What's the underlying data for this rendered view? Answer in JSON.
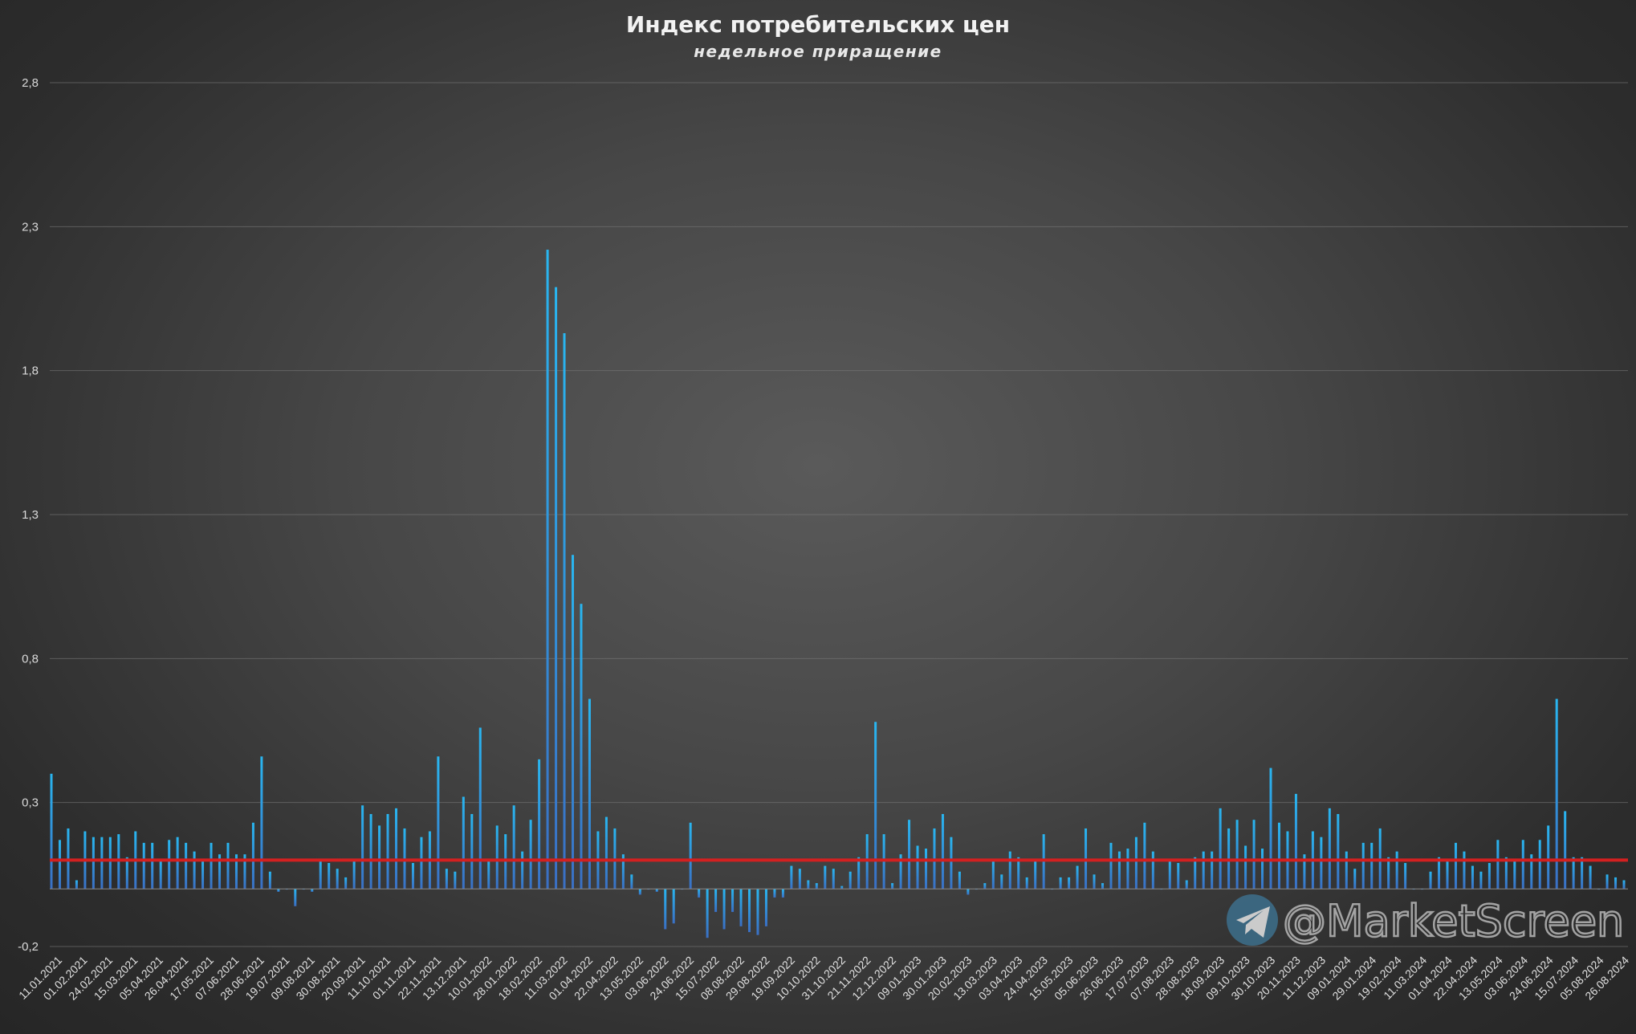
{
  "chart_data": {
    "type": "bar",
    "title": "Индекс потребительских цен",
    "subtitle": "недельное приращение",
    "xlabel": "",
    "ylabel": "",
    "ylim": [
      -0.2,
      2.8
    ],
    "yticks": [
      "-0,2",
      "0,3",
      "0,8",
      "1,3",
      "1,8",
      "2,3",
      "2,8"
    ],
    "ytick_values": [
      -0.2,
      0.3,
      0.8,
      1.3,
      1.8,
      2.3,
      2.8
    ],
    "grid": true,
    "bar_color": "#1f9bd8",
    "reference_line": {
      "value": 0.1,
      "color": "#d42020"
    },
    "xtick_labels": [
      "11.01.2021",
      "01.02.2021",
      "24.02.2021",
      "15.03.2021",
      "05.04.2021",
      "26.04.2021",
      "17.05.2021",
      "07.06.2021",
      "28.06.2021",
      "19.07.2021",
      "09.08.2021",
      "30.08.2021",
      "20.09.2021",
      "11.10.2021",
      "01.11.2021",
      "22.11.2021",
      "13.12.2021",
      "10.01.2022",
      "28.01.2022",
      "18.02.2022",
      "11.03.2022",
      "01.04.2022",
      "22.04.2022",
      "13.05.2022",
      "03.06.2022",
      "24.06.2022",
      "15.07.2022",
      "08.08.2022",
      "29.08.2022",
      "19.09.2022",
      "10.10.2022",
      "31.10.2022",
      "21.11.2022",
      "12.12.2022",
      "09.01.2023",
      "30.01.2023",
      "20.02.2023",
      "13.03.2023",
      "03.04.2023",
      "24.04.2023",
      "15.05.2023",
      "05.06.2023",
      "26.06.2023",
      "17.07.2023",
      "07.08.2023",
      "28.08.2023",
      "18.09.2023",
      "09.10.2023",
      "30.10.2023",
      "20.11.2023",
      "11.12.2023",
      "09.01.2024",
      "29.01.2024",
      "19.02.2024",
      "11.03.2024",
      "01.04.2024",
      "22.04.2024",
      "13.05.2024",
      "03.06.2024",
      "24.06.2024",
      "15.07.2024",
      "05.08.2024",
      "26.08.2024"
    ],
    "values": [
      0.4,
      0.17,
      0.21,
      0.03,
      0.2,
      0.18,
      0.18,
      0.18,
      0.19,
      0.11,
      0.2,
      0.16,
      0.16,
      0.1,
      0.17,
      0.18,
      0.16,
      0.13,
      0.1,
      0.16,
      0.12,
      0.16,
      0.12,
      0.12,
      0.23,
      0.46,
      0.06,
      -0.01,
      0,
      -0.06,
      0,
      -0.01,
      0.1,
      0.09,
      0.07,
      0.04,
      0.1,
      0.29,
      0.26,
      0.22,
      0.26,
      0.28,
      0.21,
      0.09,
      0.18,
      0.2,
      0.46,
      0.07,
      0.06,
      0.32,
      0.26,
      0.56,
      0.1,
      0.22,
      0.19,
      0.29,
      0.13,
      0.24,
      0.45,
      2.22,
      2.09,
      1.93,
      1.16,
      0.99,
      0.66,
      0.2,
      0.25,
      0.21,
      0.12,
      0.05,
      -0.02,
      0,
      -0.01,
      -0.14,
      -0.12,
      0,
      0.23,
      -0.03,
      -0.17,
      -0.08,
      -0.14,
      -0.08,
      -0.13,
      -0.15,
      -0.16,
      -0.13,
      -0.03,
      -0.03,
      0.08,
      0.07,
      0.03,
      0.02,
      0.08,
      0.07,
      0.01,
      0.06,
      0.11,
      0.19,
      0.58,
      0.19,
      0.02,
      0.12,
      0.24,
      0.15,
      0.14,
      0.21,
      0.26,
      0.18,
      0.06,
      -0.02,
      0,
      0.02,
      0.1,
      0.05,
      0.13,
      0.11,
      0.04,
      0.1,
      0.19,
      0,
      0.04,
      0.04,
      0.08,
      0.21,
      0.05,
      0.02,
      0.16,
      0.13,
      0.14,
      0.18,
      0.23,
      0.13,
      0,
      0.1,
      0.09,
      0.03,
      0.11,
      0.13,
      0.13,
      0.28,
      0.21,
      0.24,
      0.15,
      0.24,
      0.14,
      0.42,
      0.23,
      0.2,
      0.33,
      0.12,
      0.2,
      0.18,
      0.28,
      0.26,
      0.13,
      0.07,
      0.16,
      0.16,
      0.21,
      0.11,
      0.13,
      0.09,
      0,
      0,
      0.06,
      0.11,
      0.1,
      0.16,
      0.13,
      0.08,
      0.06,
      0.09,
      0.17,
      0.11,
      0.1,
      0.17,
      0.12,
      0.17,
      0.22,
      0.66,
      0.27,
      0.11,
      0.11,
      0.08,
      0,
      0.05,
      0.04,
      0.03
    ]
  },
  "watermark": {
    "text": "@MarketScreen",
    "icon": "telegram-icon"
  }
}
